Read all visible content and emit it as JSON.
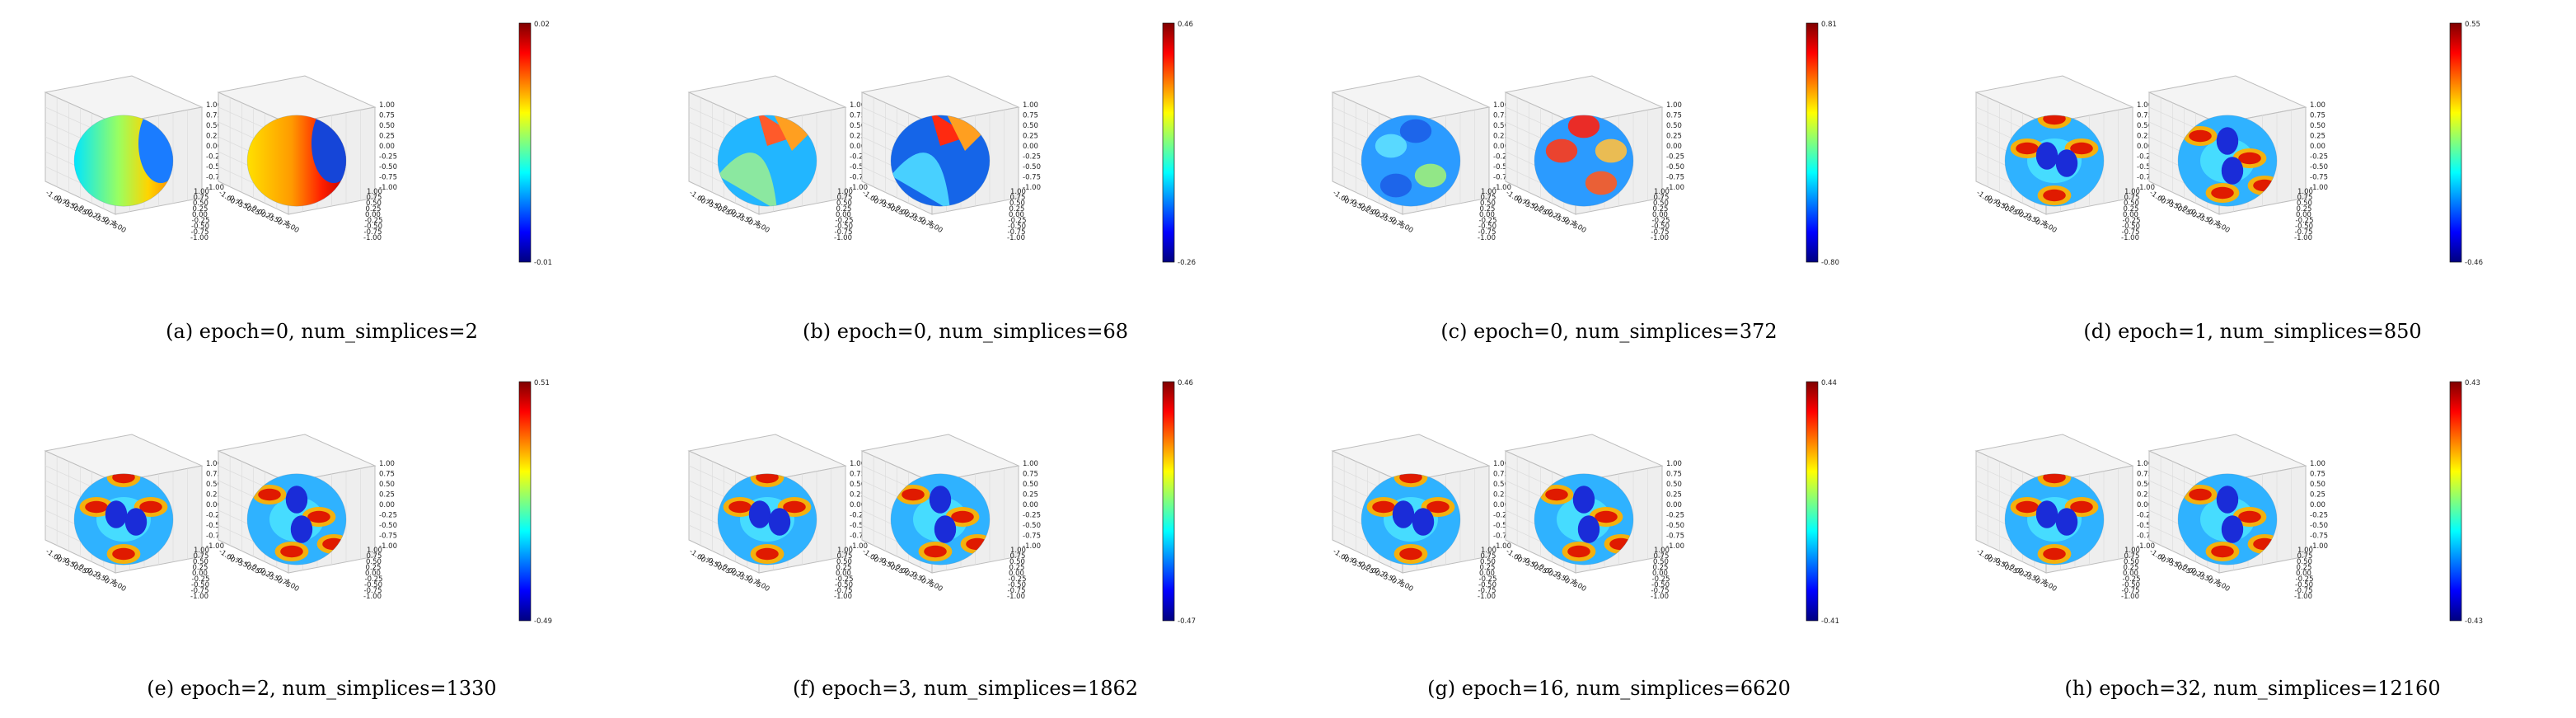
{
  "figure": {
    "panels": [
      {
        "id": "a",
        "caption": "(a) epoch=0, num_simplices=2",
        "vmax": "0.02",
        "vmin": "-0.01"
      },
      {
        "id": "b",
        "caption": "(b) epoch=0, num_simplices=68",
        "vmax": "0.46",
        "vmin": "-0.26"
      },
      {
        "id": "c",
        "caption": "(c) epoch=0, num_simplices=372",
        "vmax": "0.81",
        "vmin": "-0.80"
      },
      {
        "id": "d",
        "caption": "(d) epoch=1, num_simplices=850",
        "vmax": "0.55",
        "vmin": "-0.46"
      },
      {
        "id": "e",
        "caption": "(e) epoch=2, num_simplices=1330",
        "vmax": "0.51",
        "vmin": "-0.49"
      },
      {
        "id": "f",
        "caption": "(f) epoch=3, num_simplices=1862",
        "vmax": "0.46",
        "vmin": "-0.47"
      },
      {
        "id": "g",
        "caption": "(g) epoch=16, num_simplices=6620",
        "vmax": "0.44",
        "vmin": "-0.41"
      },
      {
        "id": "h",
        "caption": "(h) epoch=32, num_simplices=12160",
        "vmax": "0.43",
        "vmin": "-0.43"
      }
    ],
    "axis_ticks": [
      "1.00",
      "0.75",
      "0.50",
      "0.25",
      "0.00",
      "-0.25",
      "-0.50",
      "-0.75",
      "-1.00"
    ],
    "colormap": [
      "#00007f",
      "#0000ff",
      "#007fff",
      "#00ffff",
      "#7fff7f",
      "#ffff00",
      "#ff7f00",
      "#ff0000",
      "#7f0000"
    ]
  }
}
